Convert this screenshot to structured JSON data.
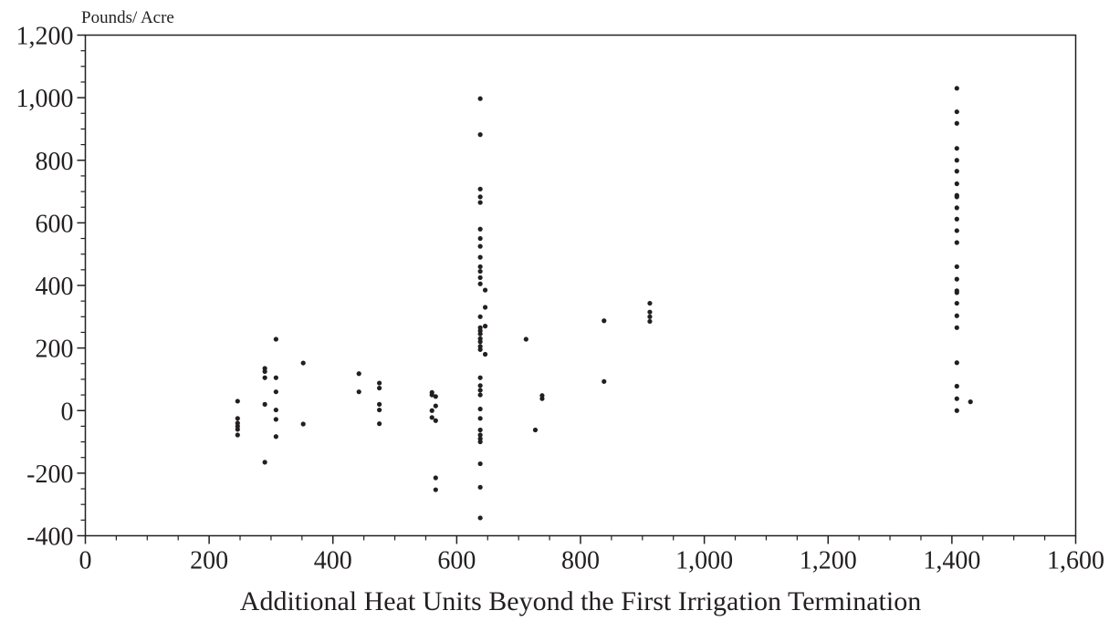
{
  "chart_data": {
    "type": "scatter",
    "title": "",
    "ylabel": "Pounds/ Acre",
    "xlabel": "Additional Heat Units Beyond the First Irrigation Termination",
    "xlim": [
      0,
      1600
    ],
    "ylim": [
      -400,
      1200
    ],
    "x_ticks": [
      0,
      200,
      400,
      600,
      800,
      1000,
      1200,
      1400,
      1600
    ],
    "x_tick_labels": [
      "0",
      "200",
      "400",
      "600",
      "800",
      "1,000",
      "1,200",
      "1,400",
      "1,600"
    ],
    "y_ticks": [
      -400,
      -200,
      0,
      200,
      400,
      600,
      800,
      1000,
      1200
    ],
    "y_tick_labels": [
      "-400",
      "-200",
      "0",
      "200",
      "400",
      "600",
      "800",
      "1,000",
      "1,200"
    ],
    "grid": false,
    "marker_color": "#231f20",
    "series": [
      {
        "points": [
          [
            246,
            30
          ],
          [
            246,
            -25
          ],
          [
            246,
            -40
          ],
          [
            246,
            -50
          ],
          [
            246,
            -60
          ],
          [
            246,
            -78
          ],
          [
            290,
            135
          ],
          [
            290,
            125
          ],
          [
            290,
            105
          ],
          [
            290,
            20
          ],
          [
            290,
            -165
          ],
          [
            308,
            228
          ],
          [
            308,
            105
          ],
          [
            308,
            60
          ],
          [
            308,
            2
          ],
          [
            308,
            -28
          ],
          [
            308,
            -83
          ],
          [
            352,
            152
          ],
          [
            352,
            -43
          ],
          [
            442,
            118
          ],
          [
            442,
            60
          ],
          [
            475,
            88
          ],
          [
            475,
            72
          ],
          [
            475,
            20
          ],
          [
            475,
            2
          ],
          [
            475,
            -42
          ],
          [
            560,
            58
          ],
          [
            560,
            50
          ],
          [
            560,
            0
          ],
          [
            560,
            -22
          ],
          [
            566,
            45
          ],
          [
            566,
            15
          ],
          [
            566,
            -32
          ],
          [
            566,
            -215
          ],
          [
            566,
            -253
          ],
          [
            638,
            997
          ],
          [
            638,
            882
          ],
          [
            638,
            708
          ],
          [
            638,
            683
          ],
          [
            638,
            665
          ],
          [
            638,
            580
          ],
          [
            638,
            550
          ],
          [
            638,
            525
          ],
          [
            638,
            490
          ],
          [
            638,
            460
          ],
          [
            638,
            445
          ],
          [
            638,
            425
          ],
          [
            638,
            405
          ],
          [
            638,
            300
          ],
          [
            638,
            265
          ],
          [
            638,
            255
          ],
          [
            638,
            245
          ],
          [
            638,
            230
          ],
          [
            638,
            220
          ],
          [
            638,
            205
          ],
          [
            638,
            195
          ],
          [
            638,
            105
          ],
          [
            638,
            80
          ],
          [
            638,
            65
          ],
          [
            638,
            50
          ],
          [
            638,
            5
          ],
          [
            638,
            -25
          ],
          [
            638,
            -62
          ],
          [
            638,
            -78
          ],
          [
            638,
            -90
          ],
          [
            638,
            -100
          ],
          [
            638,
            -170
          ],
          [
            638,
            -245
          ],
          [
            638,
            -343
          ],
          [
            646,
            385
          ],
          [
            646,
            330
          ],
          [
            646,
            270
          ],
          [
            646,
            180
          ],
          [
            712,
            228
          ],
          [
            727,
            -62
          ],
          [
            738,
            48
          ],
          [
            738,
            38
          ],
          [
            838,
            287
          ],
          [
            838,
            93
          ],
          [
            912,
            343
          ],
          [
            912,
            315
          ],
          [
            912,
            300
          ],
          [
            912,
            285
          ],
          [
            1408,
            1030
          ],
          [
            1408,
            955
          ],
          [
            1408,
            918
          ],
          [
            1408,
            838
          ],
          [
            1408,
            800
          ],
          [
            1408,
            765
          ],
          [
            1408,
            725
          ],
          [
            1408,
            688
          ],
          [
            1408,
            683
          ],
          [
            1408,
            648
          ],
          [
            1408,
            612
          ],
          [
            1408,
            575
          ],
          [
            1408,
            537
          ],
          [
            1408,
            460
          ],
          [
            1408,
            420
          ],
          [
            1408,
            383
          ],
          [
            1408,
            377
          ],
          [
            1408,
            343
          ],
          [
            1408,
            303
          ],
          [
            1408,
            265
          ],
          [
            1408,
            153
          ],
          [
            1408,
            78
          ],
          [
            1408,
            38
          ],
          [
            1408,
            0
          ],
          [
            1430,
            28
          ]
        ]
      }
    ]
  }
}
